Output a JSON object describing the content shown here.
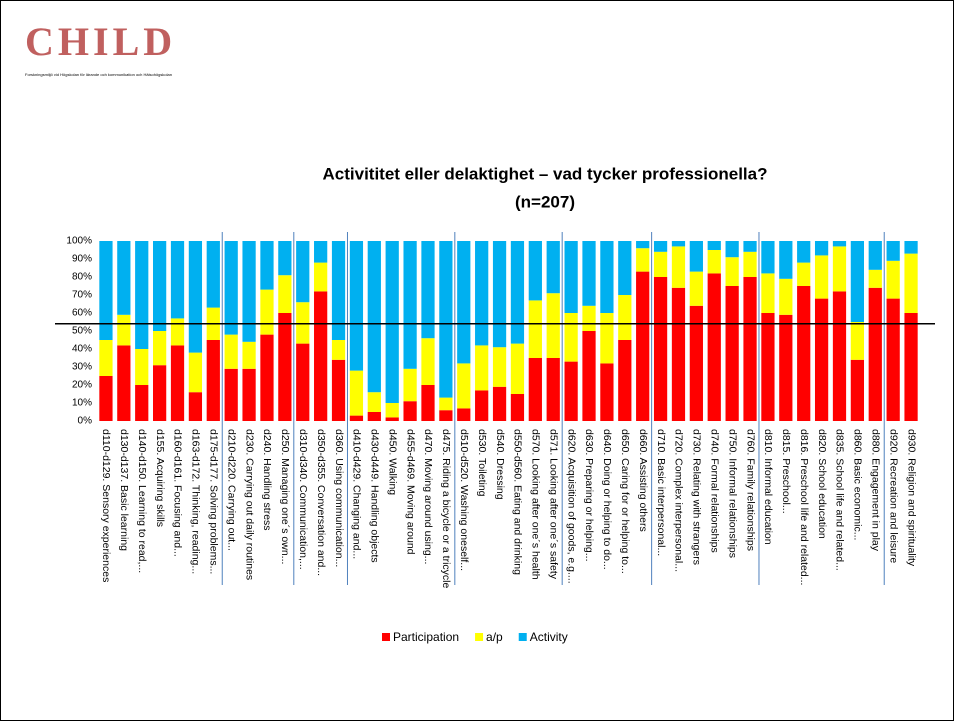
{
  "logo": {
    "title": "CHILD",
    "subtitle": "Forskningsmiljö vid Högskolan för lärande och kommunikation och Hälsohögskolan"
  },
  "chart_data": {
    "type": "stacked-bar",
    "title": "Activititet eller delaktighet – vad tycker professionella?",
    "subtitle": "(n=207)",
    "categories": [
      "d110-d129. Sensory experiences",
      "d130-d137. Basic learning",
      "d140-d150. Learning to read,...",
      "d155. Acquiring skills",
      "d160-d161. Focusing and...",
      "d163-d172. Thinking, reading...",
      "d175-d177. Solving problems...",
      "d210-d220. Carrying out...",
      "d230. Carrying out daily routines",
      "d240. Handling stress",
      "d250. Managing one´s own...",
      "d310-d340. Communication,...",
      "d350-d355. Conversation and...",
      "d360. Using communication...",
      "d410-d429. Changing and...",
      "d430-d449. Handling objects",
      "d450. Walking",
      "d455-d469. Moving around",
      "d470. Moving around using...",
      "d475. Riding a bicycle or a tricycle",
      "d510-d520. Washing oneself...",
      "d530. Toileting",
      "d540. Dressing",
      "d550-d560. Eating and drinking",
      "d570. Looking after one´s health",
      "d571. Looking after one´s safety",
      "d620. Acquisition of goods, e.g....",
      "d630. Preparing or helping...",
      "d640. Doing or helping to do...",
      "d650. Caring for or helping to...",
      "d660. Assisting others",
      "d710. Basic interpersonal...",
      "d720. Complex interpersonal...",
      "d730. Relating with strangers",
      "d740. Formal relationships",
      "d750. Informal relationships",
      "d760. Family relationships",
      "d810. Informal education",
      "d815. Preschool...",
      "d816. Preschool life and related...",
      "d820. School education",
      "d835. School life and related...",
      "d860. Basic economic...",
      "d880. Engagement in play",
      "d920. Recreation and leisure",
      "d930. Religion and spirituality"
    ],
    "series": [
      {
        "name": "Participation",
        "color": "#ff0000",
        "values": [
          25,
          42,
          20,
          31,
          42,
          16,
          45,
          29,
          29,
          48,
          60,
          43,
          72,
          34,
          3,
          5,
          2,
          11,
          20,
          6,
          7,
          17,
          19,
          15,
          35,
          35,
          33,
          50,
          32,
          45,
          83,
          80,
          74,
          64,
          82,
          75,
          80,
          60,
          59,
          75,
          68,
          72,
          34,
          74,
          68,
          60
        ]
      },
      {
        "name": "a/p",
        "color": "#ffff00",
        "values": [
          20,
          17,
          20,
          19,
          15,
          22,
          18,
          19,
          15,
          25,
          21,
          23,
          16,
          11,
          25,
          11,
          8,
          18,
          26,
          7,
          25,
          25,
          22,
          28,
          32,
          36,
          27,
          14,
          28,
          25,
          13,
          14,
          23,
          19,
          13,
          16,
          14,
          22,
          20,
          13,
          24,
          25,
          21,
          10,
          21,
          33
        ]
      },
      {
        "name": "Activity",
        "color": "#00b0f0",
        "values": [
          55,
          41,
          60,
          50,
          43,
          62,
          37,
          52,
          56,
          27,
          19,
          34,
          12,
          55,
          72,
          84,
          90,
          71,
          54,
          87,
          68,
          58,
          59,
          57,
          33,
          29,
          40,
          36,
          40,
          30,
          4,
          6,
          3,
          17,
          5,
          9,
          6,
          18,
          21,
          12,
          8,
          3,
          45,
          16,
          11,
          7
        ]
      }
    ],
    "ylim": [
      0,
      100
    ],
    "yticks": [
      {
        "value": 0,
        "label": "0%"
      },
      {
        "value": 10,
        "label": "10%"
      },
      {
        "value": 20,
        "label": "20%"
      },
      {
        "value": 30,
        "label": "30%"
      },
      {
        "value": 40,
        "label": "40%"
      },
      {
        "value": 50,
        "label": "50%"
      },
      {
        "value": 60,
        "label": "60%"
      },
      {
        "value": 70,
        "label": "70%"
      },
      {
        "value": 80,
        "label": "80%"
      },
      {
        "value": 90,
        "label": "90%"
      },
      {
        "value": 100,
        "label": "100%"
      }
    ],
    "reference_line": 54,
    "legend": "bottom"
  }
}
